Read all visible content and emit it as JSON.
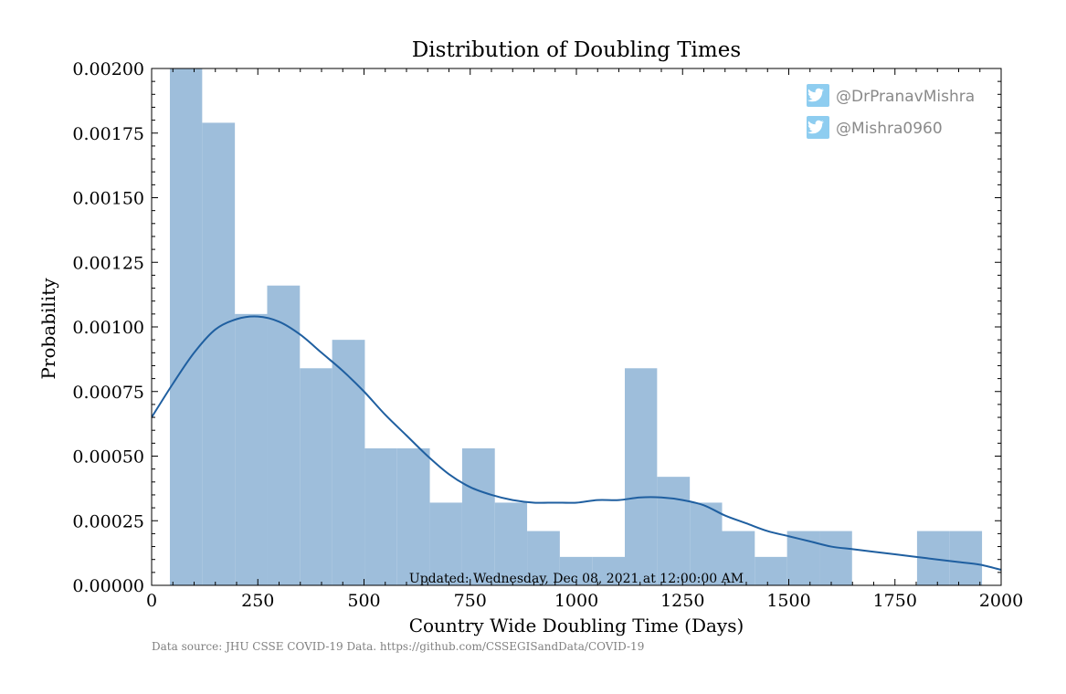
{
  "chart_data": {
    "type": "bar",
    "title": "Distribution of Doubling Times",
    "xlabel": "Country Wide Doubling Time (Days)",
    "ylabel": "Probability",
    "xlim": [
      0,
      2000
    ],
    "ylim": [
      0,
      0.002
    ],
    "xticks": [
      "0",
      "250",
      "500",
      "750",
      "1000",
      "1250",
      "1500",
      "1750",
      "2000"
    ],
    "xtick_values": [
      0,
      250,
      500,
      750,
      1000,
      1250,
      1500,
      1750,
      2000
    ],
    "yticks": [
      "0.00000",
      "0.00025",
      "0.00050",
      "0.00075",
      "0.00100",
      "0.00125",
      "0.00150",
      "0.00175",
      "0.00200"
    ],
    "ytick_values": [
      0,
      0.00025,
      0.0005,
      0.00075,
      0.001,
      0.00125,
      0.0015,
      0.00175,
      0.002
    ],
    "bin_edges": [
      43,
      119,
      196,
      272,
      349,
      425,
      502,
      578,
      655,
      731,
      808,
      884,
      961,
      1037,
      1114,
      1190,
      1267,
      1343,
      1420,
      1496,
      1573,
      1649,
      1726,
      1802,
      1879,
      1955
    ],
    "histogram_values": [
      0.0021,
      0.00179,
      0.00105,
      0.00116,
      0.00084,
      0.00095,
      0.00053,
      0.00053,
      0.00032,
      0.00053,
      0.00032,
      0.00021,
      0.00011,
      0.00011,
      0.00084,
      0.00042,
      0.00032,
      0.00021,
      0.00011,
      0.00021,
      0.00021,
      0,
      0,
      0.00021,
      0.00021
    ],
    "bar_color": "#9ebedb",
    "kde": {
      "color": "#1f5fa0",
      "x": [
        0,
        50,
        100,
        150,
        200,
        250,
        300,
        350,
        400,
        450,
        500,
        550,
        600,
        650,
        700,
        750,
        800,
        850,
        900,
        950,
        1000,
        1050,
        1100,
        1150,
        1200,
        1250,
        1300,
        1350,
        1400,
        1450,
        1500,
        1550,
        1600,
        1650,
        1700,
        1750,
        1800,
        1850,
        1900,
        1950,
        2000
      ],
      "y": [
        0.00065,
        0.00078,
        0.0009,
        0.00099,
        0.00103,
        0.00104,
        0.00102,
        0.00097,
        0.0009,
        0.00083,
        0.00075,
        0.00066,
        0.00058,
        0.0005,
        0.00043,
        0.00038,
        0.00035,
        0.00033,
        0.00032,
        0.00032,
        0.00032,
        0.00033,
        0.00033,
        0.00034,
        0.00034,
        0.00033,
        0.00031,
        0.00027,
        0.00024,
        0.00021,
        0.00019,
        0.00017,
        0.00015,
        0.00014,
        0.00013,
        0.00012,
        0.00011,
        0.0001,
        9e-05,
        8e-05,
        6e-05
      ]
    },
    "annotation": "Updated: Wednesday, Dec 08, 2021 at 12:00:00 AM",
    "source": "Data source: JHU CSSE COVID-19 Data. https://github.com/CSSEGISandData/COVID-19",
    "handles": [
      {
        "icon": "twitter-icon",
        "text": "@DrPranavMishra"
      },
      {
        "icon": "twitter-icon",
        "text": "@Mishra0960"
      }
    ],
    "grid": false,
    "twitter_color": "#8ecdf0"
  }
}
